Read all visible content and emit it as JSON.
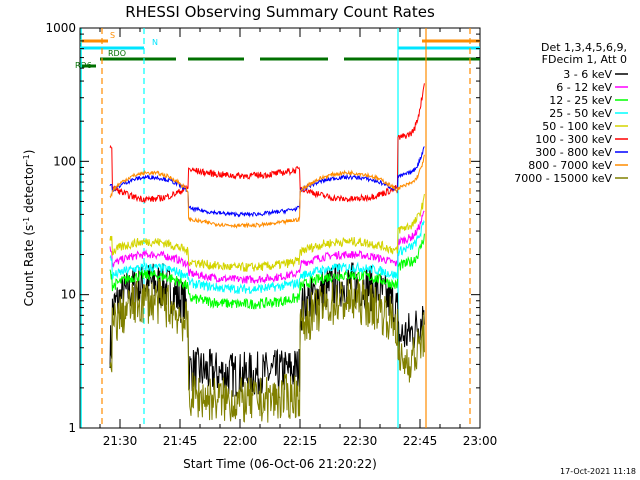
{
  "chart_data": {
    "type": "line",
    "title": "RHESSI Observing Summary Count Rates",
    "ylabel_parts": [
      "Count Rate (s",
      "-1",
      " detector",
      "-1",
      ")"
    ],
    "xlabel": "Start Time (06-Oct-06 21:20:22)",
    "yscale": "log",
    "ylim": [
      1,
      1000
    ],
    "y_ticks": [
      1,
      10,
      100,
      1000
    ],
    "x_range_minutes": [
      0,
      100
    ],
    "x_ticks": [
      {
        "t": 10,
        "label": "21:30"
      },
      {
        "t": 25,
        "label": "21:45"
      },
      {
        "t": 40,
        "label": "22:00"
      },
      {
        "t": 55,
        "label": "22:15"
      },
      {
        "t": 70,
        "label": "22:30"
      },
      {
        "t": 85,
        "label": "22:45"
      },
      {
        "t": 100,
        "label": "23:00"
      }
    ],
    "legend_header": [
      "Det 1,3,4,5,6,9,",
      "FDecim 1, Att 0"
    ],
    "footer": "17-Oct-2021 11:18",
    "series": [
      {
        "name": "3 - 6 keV",
        "color": "#000000",
        "day_peak": 12,
        "night_level": 2.5,
        "noise": 0.35
      },
      {
        "name": "6 - 12 keV",
        "color": "#ff00ff",
        "day_peak": 20,
        "night_level": 13,
        "noise": 0.06
      },
      {
        "name": "12 - 25 keV",
        "color": "#00ff00",
        "day_peak": 14,
        "night_level": 8.5,
        "noise": 0.08
      },
      {
        "name": "25 - 50 keV",
        "color": "#00ffff",
        "day_peak": 16,
        "night_level": 11,
        "noise": 0.07
      },
      {
        "name": "50 - 100 keV",
        "color": "#d4d400",
        "day_peak": 25,
        "night_level": 16,
        "noise": 0.07
      },
      {
        "name": "100 - 300 keV",
        "color": "#ff0000",
        "day_peak": 52,
        "night_level": 78,
        "noise": 0.05
      },
      {
        "name": "300 - 800 keV",
        "color": "#0000ff",
        "day_peak": 76,
        "night_level": 40,
        "noise": 0.03
      },
      {
        "name": "800 - 7000 keV",
        "color": "#ff8c00",
        "day_peak": 82,
        "night_level": 33,
        "noise": 0.03
      },
      {
        "name": "7000 - 15000 keV",
        "color": "#808000",
        "day_peak": 9,
        "night_level": 1.6,
        "noise": 0.35
      }
    ],
    "flag_bars": [
      {
        "label": "S",
        "color": "#ff8c00",
        "level": 3,
        "segments": [
          [
            0,
            7
          ],
          [
            85.5,
            100
          ]
        ]
      },
      {
        "label": "N",
        "color": "#00e5ff",
        "level": 2,
        "segments": [
          [
            0,
            16
          ],
          [
            79.5,
            100
          ]
        ]
      },
      {
        "label": "RDO",
        "color": "#007000",
        "level": 1,
        "segments": [
          [
            5,
            24
          ],
          [
            27,
            41
          ],
          [
            45,
            62
          ],
          [
            66,
            100
          ]
        ]
      },
      {
        "label": "RD6",
        "color": "#007000",
        "level": 0,
        "segments": [
          [
            0,
            4
          ]
        ]
      }
    ],
    "vertical_markers": [
      {
        "t": 0.3,
        "color": "#00ffff",
        "style": "solid"
      },
      {
        "t": 5.5,
        "color": "#ff8c00",
        "style": "dashed"
      },
      {
        "t": 16,
        "color": "#00ffff",
        "style": "dashed"
      },
      {
        "t": 79.5,
        "color": "#00ffff",
        "style": "solid"
      },
      {
        "t": 86.5,
        "color": "#ff8c00",
        "style": "solid"
      },
      {
        "t": 97.5,
        "color": "#ff8c00",
        "style": "dashed"
      }
    ],
    "day_intervals": [
      [
        8,
        27
      ],
      [
        55,
        79.5
      ]
    ],
    "data_range": [
      7.5,
      86.2
    ]
  }
}
